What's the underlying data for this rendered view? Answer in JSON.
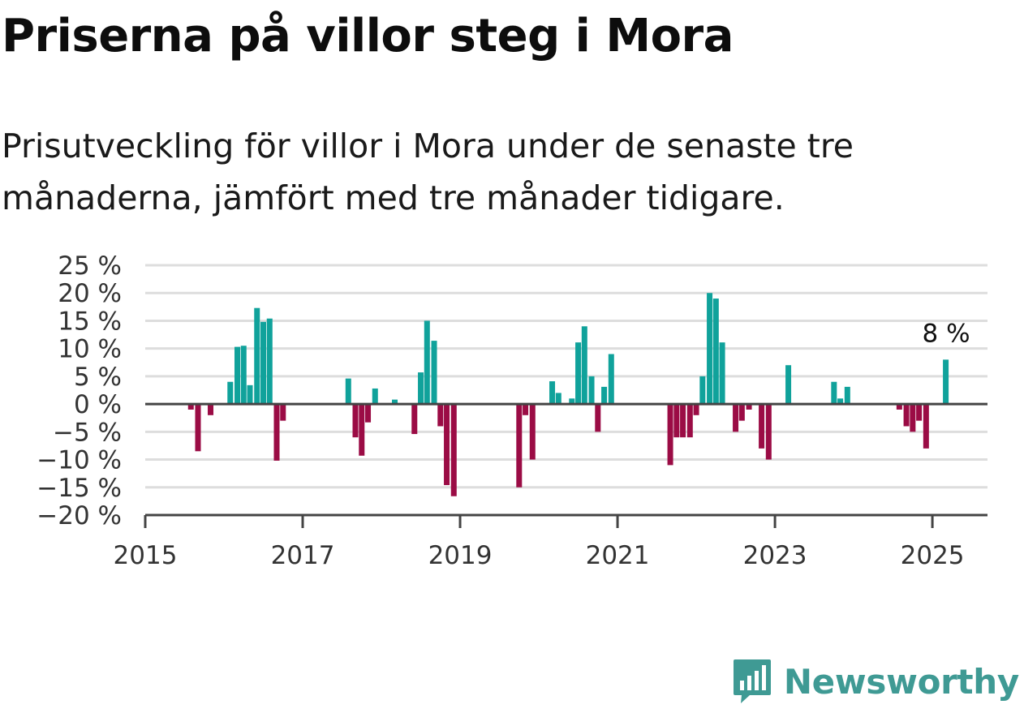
{
  "title": "Priserna på villor steg i Mora",
  "subtitle": "Prisutveckling för villor i Mora under de senaste tre månaderna, jämfört med tre månader tidigare.",
  "brand": {
    "name": "Newsworthy",
    "icon": "newsworthy-logo-icon",
    "color": "#3f9a94"
  },
  "colors": {
    "positive": "#10a29b",
    "negative": "#9b0c45",
    "grid": "#dddddd",
    "axis": "#444444"
  },
  "chart_data": {
    "type": "bar",
    "title": "Priserna på villor steg i Mora",
    "xlabel": "",
    "ylabel": "",
    "unit": "%",
    "grid": true,
    "ylim": [
      -20,
      25
    ],
    "xlim": [
      2015.0,
      2025.7
    ],
    "y_ticks": [
      25,
      20,
      15,
      10,
      5,
      0,
      -5,
      -10,
      -15,
      -20
    ],
    "y_tick_labels": [
      "25 %",
      "20 %",
      "15 %",
      "10 %",
      "5 %",
      "0 %",
      "−5 %",
      "−10 %",
      "−15 %",
      "−20 %"
    ],
    "x_ticks": [
      2015,
      2017,
      2019,
      2021,
      2023,
      2025
    ],
    "x_tick_labels": [
      "2015",
      "2017",
      "2019",
      "2021",
      "2023",
      "2025"
    ],
    "x": [
      2015.58,
      2015.67,
      2015.83,
      2016.08,
      2016.17,
      2016.25,
      2016.33,
      2016.42,
      2016.5,
      2016.58,
      2016.67,
      2016.75,
      2017.58,
      2017.67,
      2017.75,
      2017.83,
      2017.92,
      2018.17,
      2018.42,
      2018.5,
      2018.58,
      2018.67,
      2018.75,
      2018.83,
      2018.92,
      2019.75,
      2019.83,
      2019.92,
      2020.17,
      2020.25,
      2020.42,
      2020.5,
      2020.58,
      2020.67,
      2020.75,
      2020.83,
      2020.92,
      2021.67,
      2021.75,
      2021.83,
      2021.92,
      2022.0,
      2022.08,
      2022.17,
      2022.25,
      2022.33,
      2022.5,
      2022.58,
      2022.67,
      2022.83,
      2022.92,
      2023.17,
      2023.75,
      2023.83,
      2023.92,
      2024.58,
      2024.67,
      2024.75,
      2024.83,
      2024.92,
      2025.17
    ],
    "values": [
      -1,
      -8.5,
      -2,
      4,
      10.3,
      10.5,
      3.4,
      17.3,
      14.8,
      15.4,
      -10.2,
      -3,
      4.6,
      -6,
      -9.3,
      -3.3,
      2.8,
      0.8,
      -5.4,
      5.7,
      15,
      11.4,
      -4,
      -14.6,
      -16.6,
      -15,
      -2,
      -10,
      4.1,
      2,
      1,
      11.1,
      14,
      5,
      -5,
      3.1,
      9,
      -11,
      -6,
      -6,
      -6,
      -2,
      5,
      20,
      19,
      11.1,
      -5,
      -3,
      -1,
      -8,
      -10,
      7,
      4,
      1,
      3.1,
      -1,
      -4,
      -5,
      -3,
      -8,
      8
    ],
    "annotations": [
      {
        "x": 2025.17,
        "y": 8,
        "text": "8 %"
      }
    ]
  }
}
